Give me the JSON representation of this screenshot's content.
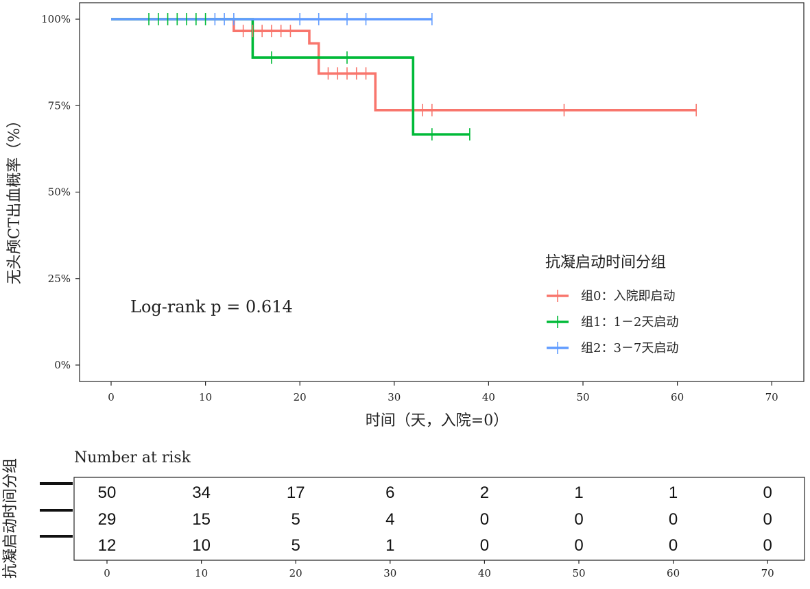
{
  "chart_data": [
    {
      "type": "line",
      "subtype": "kaplan-meier",
      "ylabel": "无头颅CT出血概率（%）",
      "xlabel": "时间（天，入院=0）",
      "xlim": [
        0,
        70
      ],
      "ylim": [
        0,
        1
      ],
      "x_ticks": [
        "0",
        "10",
        "20",
        "30",
        "40",
        "50",
        "60",
        "70"
      ],
      "y_ticks": [
        "0%",
        "25%",
        "50%",
        "75%",
        "100%"
      ],
      "grid": false,
      "legend_title": "抗凝启动时间分组",
      "legend_position": "right-center",
      "annotation": "Log-rank p = 0.614",
      "series": [
        {
          "name": "组0：入院即启动",
          "color": "#F8766D",
          "steps": [
            [
              0,
              1.0
            ],
            [
              13,
              0.966
            ],
            [
              21,
              0.93
            ],
            [
              22,
              0.843
            ],
            [
              28,
              0.737
            ],
            [
              62,
              0.737
            ]
          ],
          "censor_x": [
            14,
            15,
            16,
            17,
            18,
            19,
            23,
            24,
            25,
            26,
            27,
            33,
            34,
            48,
            62
          ]
        },
        {
          "name": "组1：1－2天启动",
          "color": "#00BA38",
          "steps": [
            [
              0,
              1.0
            ],
            [
              15,
              0.889
            ],
            [
              32,
              0.667
            ],
            [
              38,
              0.667
            ]
          ],
          "censor_x": [
            4,
            5,
            6,
            7,
            8,
            9,
            10,
            17,
            25,
            34,
            38
          ]
        },
        {
          "name": "组2：3－7天启动",
          "color": "#619CFF",
          "steps": [
            [
              0,
              1.0
            ],
            [
              34,
              1.0
            ]
          ],
          "censor_x": [
            11,
            12,
            13,
            20,
            22,
            25,
            27,
            34
          ]
        }
      ]
    },
    {
      "type": "table",
      "title": "Number at risk",
      "ylabel": "抗凝启动时间分组",
      "times": [
        0,
        10,
        20,
        30,
        40,
        50,
        60,
        70
      ],
      "x_ticks": [
        "0",
        "10",
        "20",
        "30",
        "40",
        "50",
        "60",
        "70"
      ],
      "rows": [
        {
          "color": "#F8766D",
          "values": [
            "50",
            "34",
            "17",
            "6",
            "2",
            "1",
            "1",
            "0"
          ]
        },
        {
          "color": "#00BA38",
          "values": [
            "29",
            "15",
            "5",
            "4",
            "0",
            "0",
            "0",
            "0"
          ]
        },
        {
          "color": "#619CFF",
          "values": [
            "12",
            "10",
            "5",
            "1",
            "0",
            "0",
            "0",
            "0"
          ]
        }
      ]
    }
  ]
}
